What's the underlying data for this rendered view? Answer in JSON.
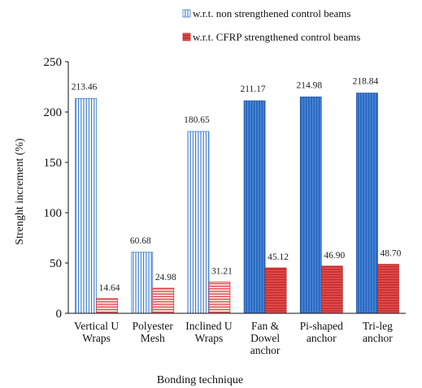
{
  "chart_data": {
    "type": "bar",
    "title": "",
    "xlabel": "Bonding technique",
    "ylabel": "Strenght increment (%)",
    "ylim": [
      0,
      250
    ],
    "yticks": [
      0,
      50,
      100,
      150,
      200,
      250
    ],
    "grid": false,
    "legend_position": "top-right",
    "categories": [
      [
        "Vertical U",
        "Wraps"
      ],
      [
        "Polyester",
        "Mesh"
      ],
      [
        "Inclined U",
        "Wraps"
      ],
      [
        "Fan &",
        "Dowel",
        "anchor"
      ],
      [
        "Pi-shaped",
        "anchor"
      ],
      [
        "Tri-leg",
        "anchor"
      ]
    ],
    "series": [
      {
        "name": "w.r.t. non strengthened control beams",
        "values": [
          213.46,
          60.68,
          180.65,
          211.17,
          214.98,
          218.84
        ],
        "labels": [
          "213.46",
          "60.68",
          "180.65",
          "211.17",
          "214.98",
          "218.84"
        ],
        "fill_light": "#ffffff",
        "fill_dark": "#2f6fc9",
        "stripe_color": "#3d7fd0",
        "stripe": "vertical"
      },
      {
        "name": "w.r.t. CFRP strengthened control beams",
        "values": [
          14.64,
          24.98,
          31.21,
          45.12,
          46.9,
          48.7
        ],
        "labels": [
          "14.64",
          "24.98",
          "31.21",
          "45.12",
          "46.90",
          "48.70"
        ],
        "fill_light": "#f7d0d0",
        "fill_dark": "#d83a3a",
        "stripe_color": "#d83a3a",
        "stripe": "horizontal"
      }
    ],
    "dark_from_category": 3
  }
}
